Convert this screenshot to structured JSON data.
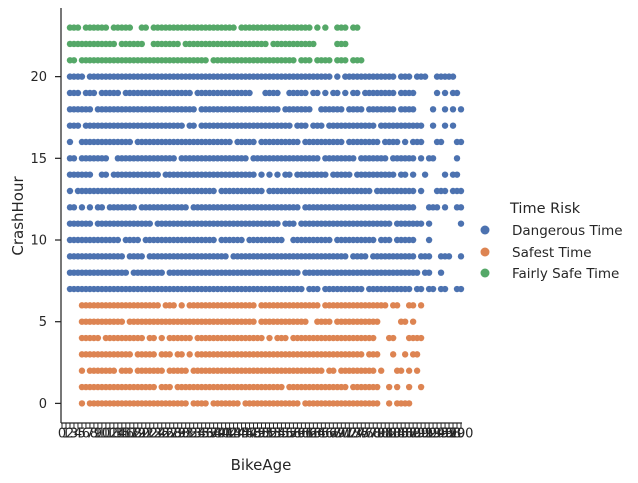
{
  "chart_data": {
    "type": "scatter",
    "style": "categorical strip plot",
    "xlabel": "BikeAge",
    "ylabel": "CrashHour",
    "ylim": [
      -1.2,
      24.2
    ],
    "yticks": [
      0,
      5,
      10,
      15,
      20
    ],
    "grid": false,
    "legend": {
      "title": "Time Risk",
      "placement": "right"
    },
    "xcategories": [
      "0",
      "1",
      "2",
      "3",
      "4",
      "5",
      "6",
      "7",
      "8",
      "9",
      "10",
      "11",
      "12",
      "13",
      "14",
      "15",
      "16",
      "17",
      "18",
      "19",
      "20",
      "21",
      "22",
      "23",
      "24",
      "25",
      "26",
      "27",
      "28",
      "29",
      "30",
      "31",
      "32",
      "33",
      "34",
      "35",
      "36",
      "37",
      "38",
      "39",
      "40",
      "41",
      "42",
      "43",
      "44",
      "45",
      "46",
      "47",
      "48",
      "49",
      "50",
      "51",
      "52",
      "53",
      "54",
      "55",
      "56",
      "57",
      "58",
      "59",
      "60",
      "61",
      "62",
      "63",
      "64",
      "65",
      "66",
      "67",
      "68",
      "69",
      "70",
      "71",
      "72",
      "73",
      "74",
      "75",
      "76",
      "77",
      "78",
      "79",
      "80",
      "81",
      "82",
      "83",
      "84",
      "85",
      "86",
      "87",
      "88",
      "89",
      "90",
      "91",
      "92",
      "93",
      "94",
      "95",
      "96",
      "97",
      "98",
      "99",
      "100"
    ],
    "series": [
      {
        "name": "Dangerous Time",
        "color": "#4c72b0",
        "hours": [
          7,
          8,
          9,
          10,
          11,
          12,
          13,
          14,
          15,
          16,
          17,
          18,
          19,
          20
        ],
        "age_range": [
          2,
          100
        ]
      },
      {
        "name": "Safest Time",
        "color": "#dd8452",
        "hours": [
          0,
          1,
          2,
          3,
          4,
          5,
          6
        ],
        "age_range": [
          5,
          90
        ]
      },
      {
        "name": "Fairly Safe Time",
        "color": "#55a868",
        "hours": [
          21,
          22,
          23
        ],
        "age_range": [
          2,
          75
        ]
      }
    ]
  }
}
